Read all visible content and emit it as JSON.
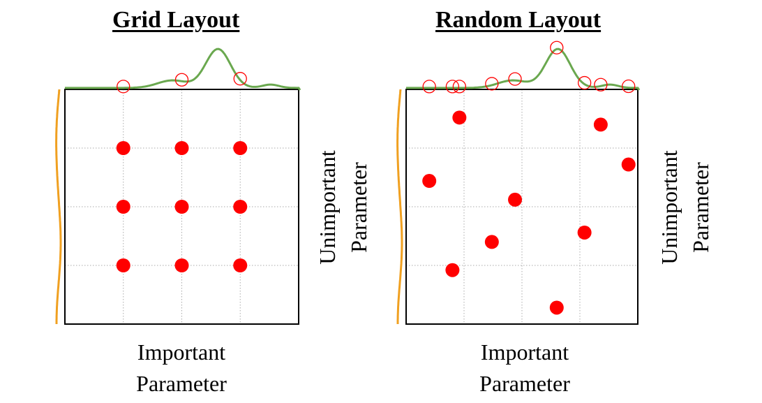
{
  "panels": [
    {
      "id": "grid",
      "title": "Grid Layout",
      "xlabel_line1": "Important",
      "xlabel_line2": "Parameter",
      "ylabel_line1": "Unimportant",
      "ylabel_line2": "Parameter",
      "points": [
        {
          "x": 0.25,
          "y": 0.75
        },
        {
          "x": 0.5,
          "y": 0.75
        },
        {
          "x": 0.75,
          "y": 0.75
        },
        {
          "x": 0.25,
          "y": 0.5
        },
        {
          "x": 0.5,
          "y": 0.5
        },
        {
          "x": 0.75,
          "y": 0.5
        },
        {
          "x": 0.25,
          "y": 0.25
        },
        {
          "x": 0.5,
          "y": 0.25
        },
        {
          "x": 0.75,
          "y": 0.25
        }
      ]
    },
    {
      "id": "random",
      "title": "Random Layout",
      "xlabel_line1": "Important",
      "xlabel_line2": "Parameter",
      "ylabel_line1": "Unimportant",
      "ylabel_line2": "Parameter",
      "points": [
        {
          "x": 0.23,
          "y": 0.88
        },
        {
          "x": 0.84,
          "y": 0.85
        },
        {
          "x": 0.96,
          "y": 0.68
        },
        {
          "x": 0.1,
          "y": 0.61
        },
        {
          "x": 0.47,
          "y": 0.53
        },
        {
          "x": 0.77,
          "y": 0.39
        },
        {
          "x": 0.37,
          "y": 0.35
        },
        {
          "x": 0.2,
          "y": 0.23
        },
        {
          "x": 0.65,
          "y": 0.07
        }
      ]
    }
  ],
  "colors": {
    "point": "#ff0000",
    "top_curve": "#6aa84f",
    "left_curve": "#f0a020",
    "grid_line": "#aaaaaa",
    "frame": "#000000"
  }
}
